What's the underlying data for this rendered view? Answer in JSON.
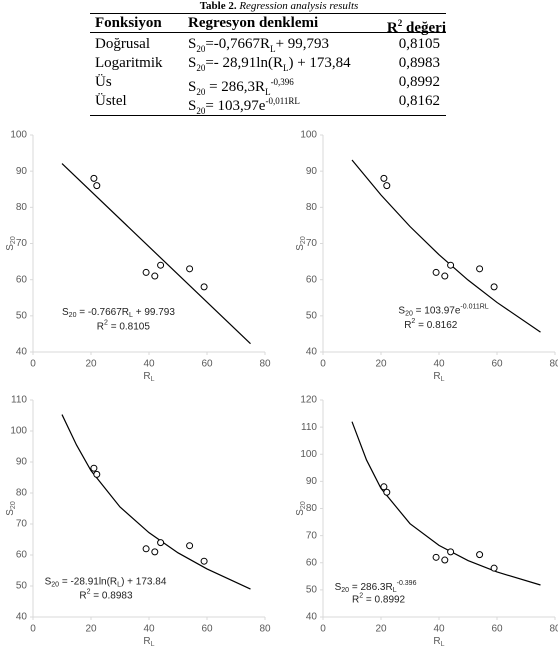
{
  "table": {
    "caption": [
      "Table 2.",
      "Regression analysis results"
    ],
    "header": [
      "Fonksiyon",
      "Regresyon denklemi",
      [
        "R",
        "2",
        " değeri"
      ]
    ],
    "rows": [
      [
        "Doğrusal",
        [
          "S",
          "20",
          "=-0,7667R",
          "L",
          "+ 99,793"
        ],
        "0,8105"
      ],
      [
        "Logaritmik",
        [
          "S",
          "20",
          "=- 28,91ln(R",
          "L",
          ") + 173,84"
        ],
        "0,8983"
      ],
      [
        "Üs",
        [
          "S",
          "20",
          " = 286,3R",
          "L",
          "-0,396"
        ],
        "0,8992"
      ],
      [
        "Üstel",
        [
          "S",
          "20",
          "= 103,97e",
          "-0,011RL"
        ],
        "0,8162"
      ]
    ]
  },
  "chart_data": [
    {
      "type": "scatter",
      "xlabel": [
        "R",
        "L"
      ],
      "ylabel": [
        "S",
        "20"
      ],
      "xlim": [
        0,
        80
      ],
      "xticks": [
        0,
        20,
        40,
        60,
        80
      ],
      "ylim": [
        40,
        100
      ],
      "yticks": [
        40,
        50,
        60,
        70,
        80,
        90,
        100
      ],
      "annotations": [
        [
          "S",
          "20",
          " = -0.7667R",
          "L",
          " + 99.793"
        ],
        [
          "R",
          "2",
          " = 0.8105"
        ]
      ],
      "series": [
        {
          "type": "scatter",
          "color": "#ffffff",
          "x": [
            21,
            22,
            39,
            42,
            44,
            54,
            59
          ],
          "values": [
            88,
            86,
            62,
            61,
            64,
            63,
            58
          ]
        },
        {
          "type": "line",
          "color": "#000000",
          "x": [
            10,
            75
          ],
          "values": [
            92.1,
            42.3
          ]
        }
      ]
    },
    {
      "type": "scatter",
      "xlabel": [
        "R",
        "L"
      ],
      "ylabel": [
        "S",
        "20"
      ],
      "xlim": [
        0,
        80
      ],
      "xticks": [
        0,
        20,
        40,
        60,
        80
      ],
      "ylim": [
        40,
        100
      ],
      "yticks": [
        40,
        50,
        60,
        70,
        80,
        90,
        100
      ],
      "annotations": [
        [
          "S",
          "20",
          " = 103.97e",
          "-0.011RL"
        ],
        [
          "R",
          "2",
          " = 0.8162"
        ]
      ],
      "series": [
        {
          "type": "scatter",
          "color": "#ffffff",
          "x": [
            21,
            22,
            39,
            42,
            44,
            54,
            59
          ],
          "values": [
            88,
            86,
            62,
            61,
            64,
            63,
            58
          ]
        },
        {
          "type": "line",
          "color": "#000000",
          "x": [
            10,
            20,
            30,
            40,
            50,
            60,
            75
          ],
          "values": [
            93.1,
            83.4,
            74.7,
            66.9,
            59.9,
            53.7,
            45.5
          ]
        }
      ]
    },
    {
      "type": "scatter",
      "xlabel": [
        "R",
        "L"
      ],
      "ylabel": [
        "S",
        "20"
      ],
      "xlim": [
        0,
        80
      ],
      "xticks": [
        0,
        20,
        40,
        60,
        80
      ],
      "ylim": [
        40,
        110
      ],
      "yticks": [
        40,
        50,
        60,
        70,
        80,
        90,
        100,
        110
      ],
      "annotations": [
        [
          "S",
          "20",
          " = -28.91ln(R",
          "L",
          ") + 173.84"
        ],
        [
          "R",
          "2",
          " = 0.8983"
        ]
      ],
      "series": [
        {
          "type": "scatter",
          "color": "#ffffff",
          "x": [
            21,
            22,
            39,
            42,
            44,
            54,
            59
          ],
          "values": [
            88,
            86,
            62,
            61,
            64,
            63,
            58
          ]
        },
        {
          "type": "line",
          "color": "#000000",
          "x": [
            10,
            15,
            20,
            30,
            40,
            50,
            60,
            75
          ],
          "values": [
            105.3,
            95.5,
            87.2,
            75.5,
            67.2,
            60.7,
            55.5,
            49.0
          ]
        }
      ]
    },
    {
      "type": "scatter",
      "xlabel": [
        "R",
        "L"
      ],
      "ylabel": [
        "S",
        "20"
      ],
      "xlim": [
        0,
        80
      ],
      "xticks": [
        0,
        20,
        40,
        60,
        80
      ],
      "ylim": [
        40,
        120
      ],
      "yticks": [
        40,
        50,
        60,
        70,
        80,
        90,
        100,
        110,
        120
      ],
      "annotations": [
        [
          "S",
          "20",
          " = 286.3R",
          "L",
          "-0.396"
        ],
        [
          "R",
          "2",
          " = 0.8992"
        ]
      ],
      "series": [
        {
          "type": "scatter",
          "color": "#ffffff",
          "x": [
            21,
            22,
            39,
            42,
            44,
            54,
            59
          ],
          "values": [
            88,
            86,
            62,
            61,
            64,
            63,
            58
          ]
        },
        {
          "type": "line",
          "color": "#000000",
          "x": [
            10,
            15,
            20,
            30,
            40,
            50,
            60,
            75
          ],
          "values": [
            112,
            97.9,
            87.4,
            74.4,
            66.4,
            60.8,
            56.6,
            51.8
          ]
        }
      ]
    }
  ]
}
